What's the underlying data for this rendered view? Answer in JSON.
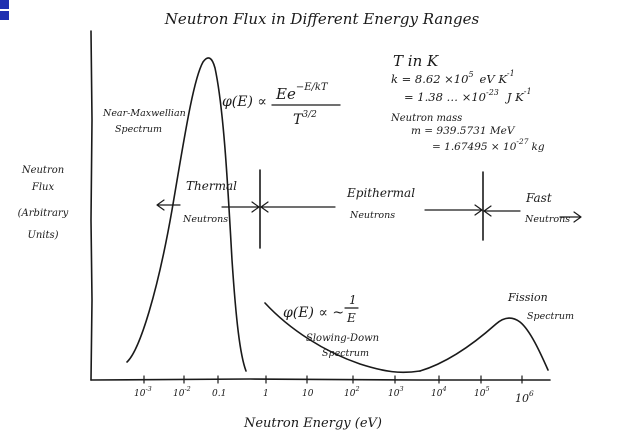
{
  "title": "Neutron Flux in Different Energy Ranges",
  "y_axis_label": [
    "Neutron",
    "Flux",
    "(Arbitrary",
    "Units)"
  ],
  "x_axis_label": "Neutron Energy (eV)",
  "x_ticks": [
    {
      "base": "10",
      "exp": "-3"
    },
    {
      "base": "10",
      "exp": "-2"
    },
    {
      "base": "0.1",
      "exp": ""
    },
    {
      "base": "1",
      "exp": ""
    },
    {
      "base": "10",
      "exp": ""
    },
    {
      "base": "10",
      "exp": "2"
    },
    {
      "base": "10",
      "exp": "3"
    },
    {
      "base": "10",
      "exp": "4"
    },
    {
      "base": "10",
      "exp": "5"
    },
    {
      "base": "10",
      "exp": "6"
    }
  ],
  "region_labels": {
    "thermal": [
      "Thermal",
      "Neutrons"
    ],
    "epithermal": [
      "Epithermal",
      "Neutrons"
    ],
    "fast": [
      "Fast",
      "Neutrons"
    ]
  },
  "curve_labels": {
    "maxwellian": [
      "Near-Maxwellian",
      "Spectrum"
    ],
    "slowing_down": [
      "Slowing-Down",
      "Spectrum"
    ],
    "fission": [
      "Fission",
      "Spectrum"
    ]
  },
  "formulas": {
    "maxwell_lhs": "φ(E) ∝",
    "maxwell_num": "Ee",
    "maxwell_exp": "−E/kT",
    "maxwell_den": "T",
    "maxwell_den_exp": "3/2",
    "slowing_lhs": "φ(E) ∝ ~",
    "slowing_num": "1",
    "slowing_den": "E"
  },
  "constants": {
    "t_units": "T in K",
    "k_line1": "k = 8.62 ×10",
    "k_line1_exp": "5",
    "k_line1_unit": "eV K",
    "k_line1_unit_exp": "-1",
    "k_line2": "= 1.38 … ×10",
    "k_line2_exp": "-23",
    "k_line2_unit": "J K",
    "k_line2_unit_exp": "-1",
    "neutron_mass_label": "Neutron mass",
    "m_line1": "m = 939.5731 MeV",
    "m_line2": "= 1.67495 × 10",
    "m_line2_exp": "-27",
    "m_line2_unit": "kg"
  }
}
